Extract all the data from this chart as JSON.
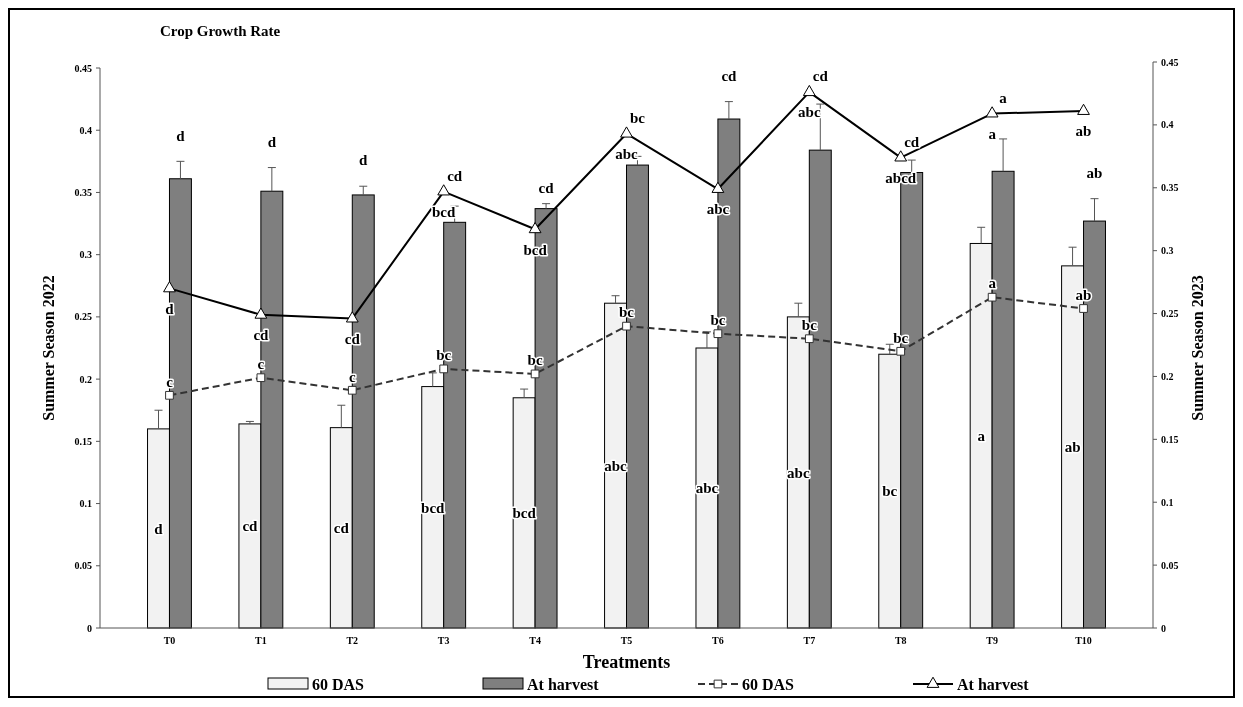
{
  "chart_data": {
    "type": "bar",
    "title": "Crop Growth Rate",
    "xlabel": "Treatments",
    "ylabel": "Summer Season 2022",
    "y2label": "Summer Season 2023",
    "categories": [
      "T0",
      "T1",
      "T2",
      "T3",
      "T4",
      "T5",
      "T6",
      "T7",
      "T8",
      "T9",
      "T10"
    ],
    "ylim": [
      0,
      0.45
    ],
    "yticks": [
      0,
      0.05,
      0.1,
      0.15,
      0.2,
      0.25,
      0.3,
      0.35,
      0.4,
      0.45
    ],
    "y2lim": [
      0,
      0.45
    ],
    "y2ticks": [
      0,
      0.05,
      0.1,
      0.15,
      0.2,
      0.25,
      0.3,
      0.35,
      0.4,
      0.45
    ],
    "grid": false,
    "legend": "bottom",
    "series": [
      {
        "name": "60 DAS",
        "color": "#f2f2f2",
        "values": [
          0.16,
          0.164,
          0.161,
          0.194,
          0.185,
          0.261,
          0.225,
          0.25,
          0.22,
          0.309,
          0.291
        ],
        "errors": [
          0.015,
          0.002,
          0.018,
          0.011,
          0.007,
          0.006,
          0.013,
          0.011,
          0.008,
          0.013,
          0.015
        ]
      },
      {
        "name": "At harvest",
        "color": "#7f7f7f",
        "values": [
          0.361,
          0.351,
          0.348,
          0.326,
          0.337,
          0.372,
          0.409,
          0.384,
          0.366,
          0.367,
          0.327
        ],
        "errors": [
          0.014,
          0.019,
          0.007,
          0.013,
          0.004,
          0.007,
          0.014,
          0.037,
          0.01,
          0.026,
          0.018
        ]
      },
      {
        "name": "60 DAS",
        "type": "line",
        "axis": "y2",
        "color": "#333333",
        "marker": "square",
        "line_style": "dashed",
        "values": [
          0.185,
          0.199,
          0.189,
          0.206,
          0.202,
          0.24,
          0.234,
          0.23,
          0.22,
          0.263,
          0.254
        ]
      },
      {
        "name": "At harvest",
        "type": "line",
        "axis": "y2",
        "color": "#000000",
        "marker": "triangle",
        "line_style": "solid",
        "values": [
          0.27,
          0.249,
          0.246,
          0.347,
          0.317,
          0.393,
          0.349,
          0.426,
          0.374,
          0.409,
          0.411
        ]
      }
    ],
    "annotations": [
      "d",
      "d",
      "d",
      "cd",
      "cd",
      "bc",
      "cd",
      "cd",
      "cd",
      "a",
      "ab",
      "d",
      "cd",
      "cd",
      "bcd",
      "bcd",
      "abc",
      "abc",
      "abc",
      "abcd",
      "a",
      "ab",
      "c",
      "c",
      "c",
      "bc",
      "bc",
      "bc",
      "bc",
      "bc",
      "bc",
      "a",
      "ab",
      "d",
      "cd",
      "cd",
      "bcd",
      "bcd",
      "abc",
      "abc",
      "abc",
      "bc",
      "a",
      "ab"
    ]
  }
}
